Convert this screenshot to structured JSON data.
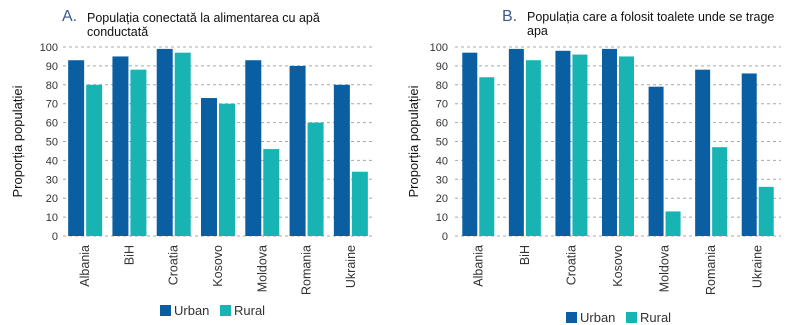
{
  "colors": {
    "urban": "#0a5fa3",
    "rural": "#18b3b3"
  },
  "chart_data": [
    {
      "type": "bar",
      "letter": "A.",
      "title_lines": [
        "Populația conectată la alimentarea cu apă",
        "conductată"
      ],
      "ylabel": "Proporția populației",
      "ylim": [
        0,
        100
      ],
      "yticks": [
        0,
        10,
        20,
        30,
        40,
        50,
        60,
        70,
        80,
        90,
        100
      ],
      "grid": true,
      "legend_position": "bottom",
      "categories": [
        "Albania",
        "BiH",
        "Croatia",
        "Kosovo",
        "Moldova",
        "Romania",
        "Ukraine"
      ],
      "series": [
        {
          "name": "Urban",
          "values": [
            93,
            95,
            99,
            73,
            93,
            90,
            80
          ]
        },
        {
          "name": "Rural",
          "values": [
            80,
            88,
            97,
            70,
            46,
            60,
            34
          ]
        }
      ]
    },
    {
      "type": "bar",
      "letter": "B.",
      "title_lines": [
        "Populația care a folosit toalete unde se trage",
        "apa"
      ],
      "ylabel": "Proporția populației",
      "ylim": [
        0,
        100
      ],
      "yticks": [
        0,
        10,
        20,
        30,
        40,
        50,
        60,
        70,
        80,
        90,
        100
      ],
      "grid": true,
      "legend_position": "bottom",
      "categories": [
        "Albania",
        "BiH",
        "Croatia",
        "Kosovo",
        "Moldova",
        "Romania",
        "Ukraine"
      ],
      "series": [
        {
          "name": "Urban",
          "values": [
            97,
            99,
            98,
            99,
            79,
            88,
            86
          ]
        },
        {
          "name": "Rural",
          "values": [
            84,
            93,
            96,
            95,
            13,
            47,
            26
          ]
        }
      ]
    }
  ]
}
